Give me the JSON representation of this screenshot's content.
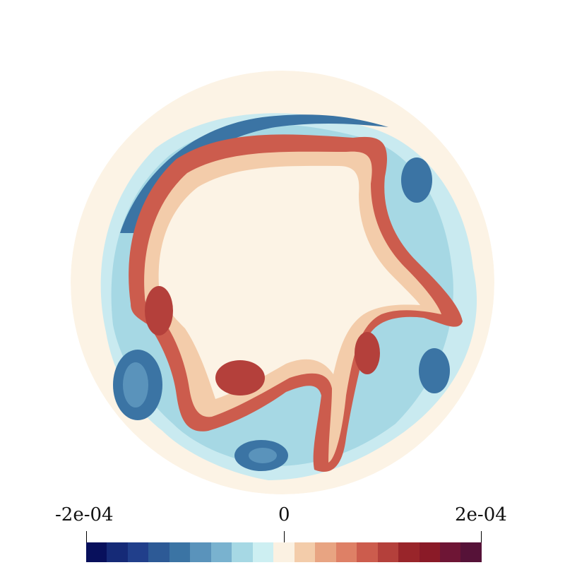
{
  "colorbar": {
    "min_label": "-2e-04",
    "mid_label": "0",
    "max_label": "2e-04",
    "colors": [
      "#08105c",
      "#152a77",
      "#213f8b",
      "#2d5a96",
      "#3b74a4",
      "#5a93bb",
      "#79b2cf",
      "#a6d8e4",
      "#cdeff2",
      "#fbf1e2",
      "#f3ccaa",
      "#e8a482",
      "#de8066",
      "#cc5c4d",
      "#b4403b",
      "#99252a",
      "#8a1a27",
      "#6e1535",
      "#561238"
    ]
  },
  "field": {
    "background_color": "#fcf3e5",
    "value_range": [
      -0.0002,
      0.0002
    ]
  }
}
